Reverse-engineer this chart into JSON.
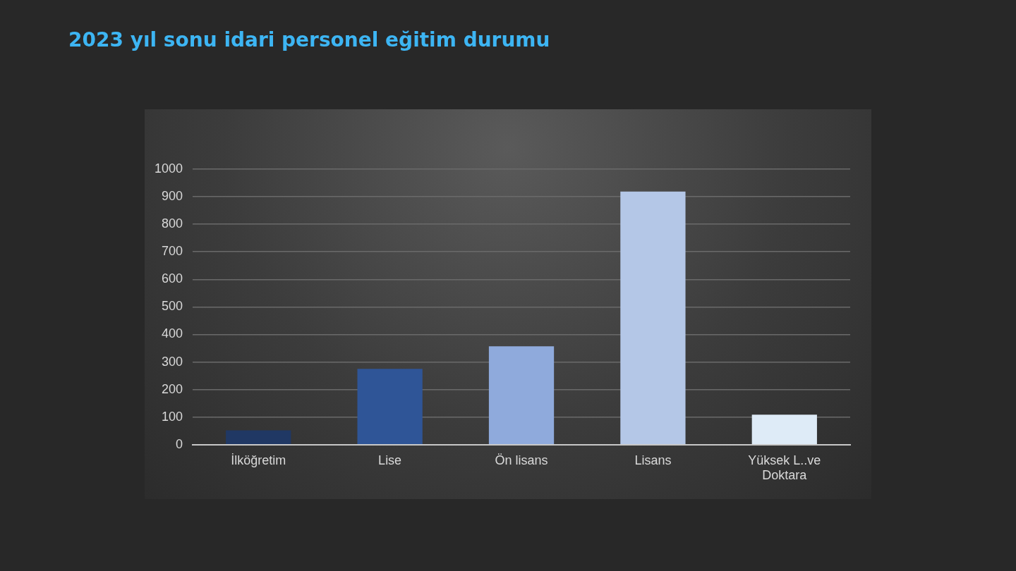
{
  "chart_data": {
    "type": "bar",
    "title": "2023 yıl sonu idari personel eğitim durumu",
    "categories": [
      "İlköğretim",
      "Lise",
      "Ön lisans",
      "Lisans",
      "Yüksek L..ve Doktara"
    ],
    "values": [
      52,
      275,
      357,
      919,
      109
    ],
    "colors": [
      "#203864",
      "#2f5597",
      "#8faadc",
      "#b4c7e7",
      "#deebf7"
    ],
    "ylim": [
      0,
      1000
    ],
    "yticks": [
      0,
      100,
      200,
      300,
      400,
      500,
      600,
      700,
      800,
      900,
      1000
    ],
    "grid": "y",
    "legend": false
  }
}
